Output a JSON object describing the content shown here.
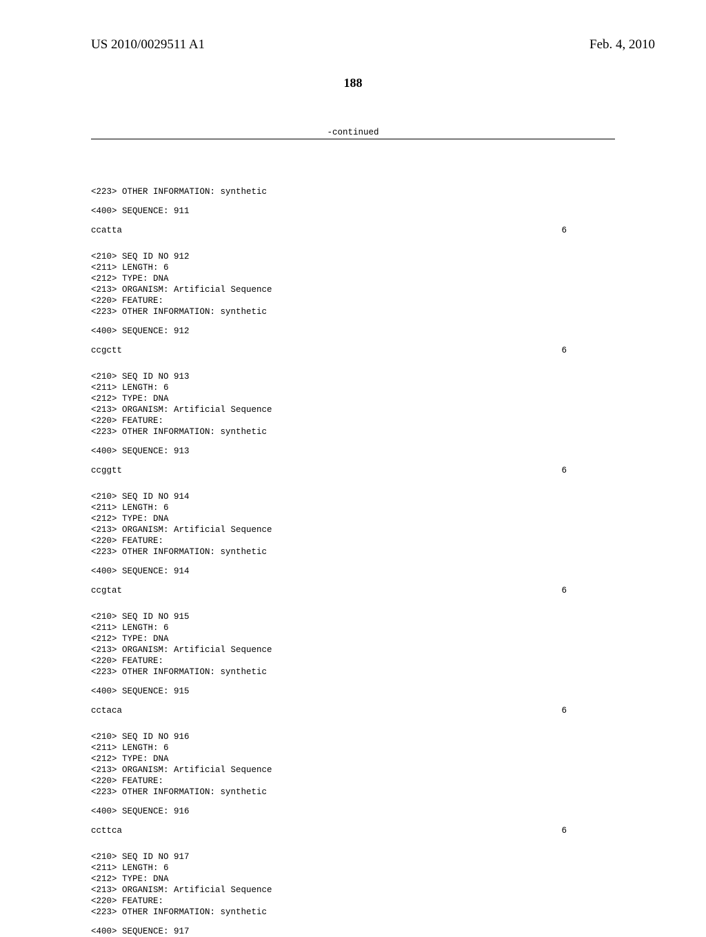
{
  "header": {
    "publication": "US 2010/0029511 A1",
    "date": "Feb. 4, 2010"
  },
  "page_number": "188",
  "continued_label": "-continued",
  "entries": [
    {
      "pre_lines": [
        "<223> OTHER INFORMATION: synthetic"
      ],
      "seq_label": "<400> SEQUENCE: 911",
      "sequence": "ccatta",
      "length_display": "6"
    },
    {
      "pre_lines": [
        "<210> SEQ ID NO 912",
        "<211> LENGTH: 6",
        "<212> TYPE: DNA",
        "<213> ORGANISM: Artificial Sequence",
        "<220> FEATURE:",
        "<223> OTHER INFORMATION: synthetic"
      ],
      "seq_label": "<400> SEQUENCE: 912",
      "sequence": "ccgctt",
      "length_display": "6"
    },
    {
      "pre_lines": [
        "<210> SEQ ID NO 913",
        "<211> LENGTH: 6",
        "<212> TYPE: DNA",
        "<213> ORGANISM: Artificial Sequence",
        "<220> FEATURE:",
        "<223> OTHER INFORMATION: synthetic"
      ],
      "seq_label": "<400> SEQUENCE: 913",
      "sequence": "ccggtt",
      "length_display": "6"
    },
    {
      "pre_lines": [
        "<210> SEQ ID NO 914",
        "<211> LENGTH: 6",
        "<212> TYPE: DNA",
        "<213> ORGANISM: Artificial Sequence",
        "<220> FEATURE:",
        "<223> OTHER INFORMATION: synthetic"
      ],
      "seq_label": "<400> SEQUENCE: 914",
      "sequence": "ccgtat",
      "length_display": "6"
    },
    {
      "pre_lines": [
        "<210> SEQ ID NO 915",
        "<211> LENGTH: 6",
        "<212> TYPE: DNA",
        "<213> ORGANISM: Artificial Sequence",
        "<220> FEATURE:",
        "<223> OTHER INFORMATION: synthetic"
      ],
      "seq_label": "<400> SEQUENCE: 915",
      "sequence": "cctaca",
      "length_display": "6"
    },
    {
      "pre_lines": [
        "<210> SEQ ID NO 916",
        "<211> LENGTH: 6",
        "<212> TYPE: DNA",
        "<213> ORGANISM: Artificial Sequence",
        "<220> FEATURE:",
        "<223> OTHER INFORMATION: synthetic"
      ],
      "seq_label": "<400> SEQUENCE: 916",
      "sequence": "ccttca",
      "length_display": "6"
    },
    {
      "pre_lines": [
        "<210> SEQ ID NO 917",
        "<211> LENGTH: 6",
        "<212> TYPE: DNA",
        "<213> ORGANISM: Artificial Sequence",
        "<220> FEATURE:",
        "<223> OTHER INFORMATION: synthetic"
      ],
      "seq_label": "<400> SEQUENCE: 917",
      "sequence": "",
      "length_display": ""
    }
  ]
}
